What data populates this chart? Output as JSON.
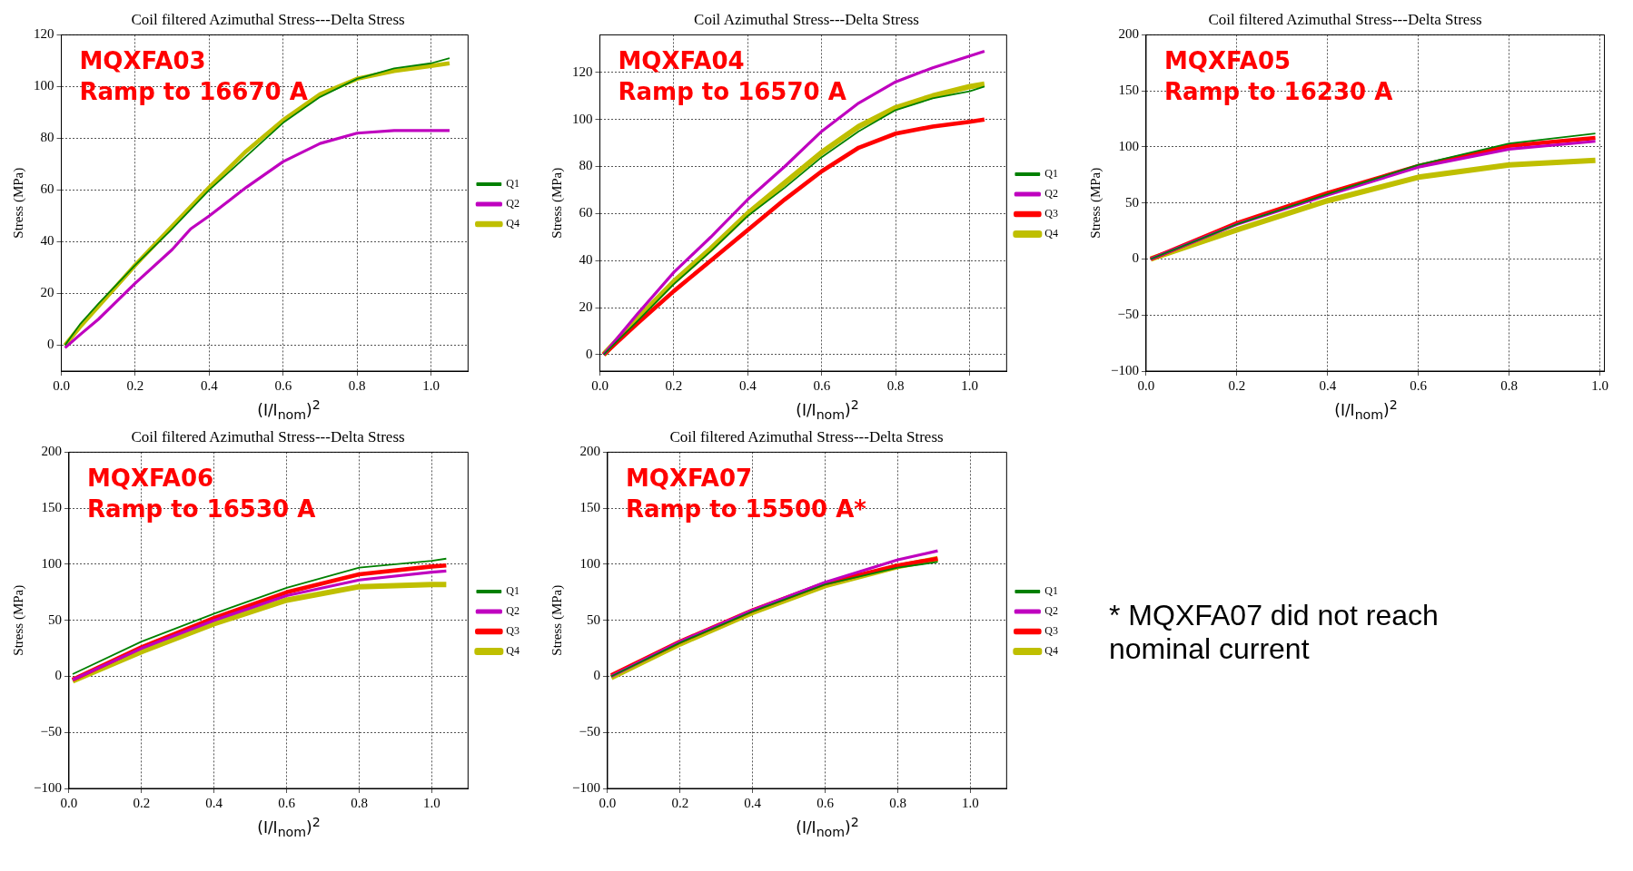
{
  "chart_data": [
    {
      "type": "line",
      "title": "Coil filtered Azimuthal Stress---Delta Stress",
      "xlabel": "(I/I$_{nom}$)$^{2}$",
      "ylabel": "Stress (MPa)",
      "annotations": [
        "MQXFA03",
        "Ramp to 16670 A"
      ],
      "xlim": [
        0,
        1.1
      ],
      "ylim": [
        -10,
        120
      ],
      "xticks": [
        {
          "value": 0,
          "label": "0.0"
        },
        {
          "value": 0.2,
          "label": "0.2"
        },
        {
          "value": 0.4,
          "label": "0.4"
        },
        {
          "value": 0.6,
          "label": "0.6"
        },
        {
          "value": 0.8,
          "label": "0.8"
        },
        {
          "value": 1,
          "label": "1.0"
        }
      ],
      "yticks": [
        0,
        20,
        40,
        60,
        80,
        100,
        120
      ],
      "grid": true,
      "legend": "right",
      "line_style": "solid",
      "series": [
        {
          "name": "Q1",
          "color": "#008000",
          "x": [
            0.01,
            0.05,
            0.1,
            0.2,
            0.3,
            0.4,
            0.5,
            0.6,
            0.7,
            0.8,
            0.9,
            1.0,
            1.05
          ],
          "values": [
            0,
            8,
            16,
            31,
            45,
            60,
            73,
            86,
            96,
            103,
            107,
            109,
            111
          ]
        },
        {
          "name": "Q2",
          "color": "#bf00bf",
          "x": [
            0.01,
            0.05,
            0.1,
            0.2,
            0.3,
            0.35,
            0.4,
            0.5,
            0.6,
            0.7,
            0.8,
            0.9,
            1.0,
            1.05
          ],
          "values": [
            -1,
            4,
            10,
            24,
            37,
            45,
            50,
            61,
            71,
            78,
            82,
            83,
            83,
            83
          ]
        },
        {
          "name": "Q4",
          "color": "#bfbf00",
          "x": [
            0.01,
            0.05,
            0.1,
            0.2,
            0.3,
            0.4,
            0.5,
            0.6,
            0.7,
            0.8,
            0.9,
            1.0,
            1.05
          ],
          "values": [
            0,
            7,
            15,
            31,
            46,
            61,
            75,
            87,
            97,
            103,
            106,
            108,
            109
          ]
        }
      ]
    },
    {
      "type": "line",
      "title": "Coil Azimuthal Stress---Delta Stress",
      "xlabel": "(I/I$_{nom}$)$^{2}$",
      "ylabel": "Stress (MPa)",
      "annotations": [
        "MQXFA04",
        "Ramp to 16570 A"
      ],
      "xlim": [
        0,
        1.1
      ],
      "ylim": [
        -7,
        136
      ],
      "xticks": [
        {
          "value": 0,
          "label": "0.0"
        },
        {
          "value": 0.2,
          "label": "0.2"
        },
        {
          "value": 0.4,
          "label": "0.4"
        },
        {
          "value": 0.6,
          "label": "0.6"
        },
        {
          "value": 0.8,
          "label": "0.8"
        },
        {
          "value": 1,
          "label": "1.0"
        }
      ],
      "yticks": [
        0,
        20,
        40,
        60,
        80,
        100,
        120
      ],
      "grid": true,
      "legend": "right",
      "line_style": "solid",
      "series": [
        {
          "name": "Q1",
          "color": "#008000",
          "x": [
            0.01,
            0.1,
            0.2,
            0.3,
            0.4,
            0.5,
            0.6,
            0.7,
            0.8,
            0.9,
            1.0,
            1.04
          ],
          "values": [
            0,
            14,
            30,
            44,
            59,
            71,
            84,
            95,
            104,
            109,
            112,
            114
          ]
        },
        {
          "name": "Q2",
          "color": "#bf00bf",
          "x": [
            0.01,
            0.1,
            0.2,
            0.3,
            0.4,
            0.5,
            0.6,
            0.7,
            0.8,
            0.9,
            1.0,
            1.04
          ],
          "values": [
            0,
            17,
            35,
            50,
            66,
            80,
            95,
            107,
            116,
            122,
            127,
            129
          ]
        },
        {
          "name": "Q3",
          "color": "#ff0000",
          "x": [
            0.01,
            0.1,
            0.2,
            0.3,
            0.4,
            0.5,
            0.6,
            0.7,
            0.8,
            0.9,
            1.0,
            1.04
          ],
          "values": [
            0,
            13,
            27,
            40,
            53,
            66,
            78,
            88,
            94,
            97,
            99,
            100
          ]
        },
        {
          "name": "Q4",
          "color": "#bfbf00",
          "x": [
            0.01,
            0.1,
            0.2,
            0.3,
            0.4,
            0.5,
            0.6,
            0.7,
            0.8,
            0.9,
            1.0,
            1.04
          ],
          "values": [
            0,
            15,
            31,
            45,
            60,
            73,
            86,
            97,
            105,
            110,
            114,
            115
          ]
        }
      ]
    },
    {
      "type": "line",
      "title": "Coil filtered Azimuthal Stress---Delta Stress",
      "xlabel": "(I/I$_{nom}$)$^{2}$",
      "ylabel": "Stress (MPa)",
      "annotations": [
        "MQXFA05",
        "Ramp to 16230 A"
      ],
      "xlim": [
        0,
        1.01
      ],
      "ylim": [
        -100,
        200
      ],
      "xticks": [
        {
          "value": 0,
          "label": "0.0"
        },
        {
          "value": 0.2,
          "label": "0.2"
        },
        {
          "value": 0.4,
          "label": "0.4"
        },
        {
          "value": 0.6,
          "label": "0.6"
        },
        {
          "value": 0.8,
          "label": "0.8"
        },
        {
          "value": 1,
          "label": "1.0"
        }
      ],
      "yticks": [
        -100,
        -50,
        0,
        50,
        100,
        150,
        200
      ],
      "grid": true,
      "line_style": "solid",
      "series": [
        {
          "color": "#008000",
          "x": [
            0.01,
            0.2,
            0.4,
            0.6,
            0.8,
            0.99
          ],
          "values": [
            0,
            31,
            58,
            84,
            103,
            112
          ]
        },
        {
          "color": "#bf00bf",
          "x": [
            0.01,
            0.2,
            0.4,
            0.6,
            0.8,
            0.99
          ],
          "values": [
            0,
            31,
            57,
            82,
            98,
            105
          ]
        },
        {
          "color": "#ff0000",
          "x": [
            0.01,
            0.2,
            0.4,
            0.6,
            0.8,
            0.99
          ],
          "values": [
            0,
            32,
            59,
            83,
            101,
            108
          ]
        },
        {
          "color": "#bfbf00",
          "x": [
            0.01,
            0.2,
            0.4,
            0.6,
            0.8,
            0.99
          ],
          "values": [
            0,
            26,
            52,
            73,
            84,
            88
          ]
        }
      ]
    },
    {
      "type": "line",
      "title": "Coil filtered Azimuthal Stress---Delta Stress",
      "xlabel": "(I/I$_{nom}$)$^{2}$",
      "ylabel": "Stress (MPa)",
      "annotations": [
        "MQXFA06",
        "Ramp to 16530 A"
      ],
      "xlim": [
        0,
        1.1
      ],
      "ylim": [
        -100,
        200
      ],
      "xticks": [
        {
          "value": 0,
          "label": "0.0"
        },
        {
          "value": 0.2,
          "label": "0.2"
        },
        {
          "value": 0.4,
          "label": "0.4"
        },
        {
          "value": 0.6,
          "label": "0.6"
        },
        {
          "value": 0.8,
          "label": "0.8"
        },
        {
          "value": 1,
          "label": "1.0"
        }
      ],
      "yticks": [
        -100,
        -50,
        0,
        50,
        100,
        150,
        200
      ],
      "grid": true,
      "legend": "right",
      "line_style": "solid",
      "series": [
        {
          "name": "Q1",
          "color": "#008000",
          "x": [
            0.01,
            0.2,
            0.4,
            0.6,
            0.8,
            1.0,
            1.04
          ],
          "values": [
            2,
            31,
            56,
            79,
            97,
            103,
            105
          ]
        },
        {
          "name": "Q2",
          "color": "#bf00bf",
          "x": [
            0.01,
            0.2,
            0.4,
            0.6,
            0.8,
            1.0,
            1.04
          ],
          "values": [
            -3,
            25,
            50,
            72,
            86,
            93,
            94
          ]
        },
        {
          "name": "Q3",
          "color": "#ff0000",
          "x": [
            0.01,
            0.2,
            0.4,
            0.6,
            0.8,
            1.0,
            1.04
          ],
          "values": [
            -3,
            26,
            52,
            75,
            91,
            98,
            99
          ]
        },
        {
          "name": "Q4",
          "color": "#bfbf00",
          "x": [
            0.01,
            0.2,
            0.4,
            0.6,
            0.8,
            1.0,
            1.04
          ],
          "values": [
            -4,
            22,
            47,
            68,
            80,
            82,
            82
          ]
        }
      ]
    },
    {
      "type": "line",
      "title": "Coil filtered Azimuthal Stress---Delta Stress",
      "xlabel": "(I/I$_{nom}$)$^{2}$",
      "ylabel": "Stress (MPa)",
      "annotations": [
        "MQXFA07",
        "Ramp to 15500 A*",
        "* MQXFA07 did not reach nominal current"
      ],
      "xlim": [
        0,
        1.1
      ],
      "ylim": [
        -100,
        200
      ],
      "xticks": [
        {
          "value": 0,
          "label": "0.0"
        },
        {
          "value": 0.2,
          "label": "0.2"
        },
        {
          "value": 0.4,
          "label": "0.4"
        },
        {
          "value": 0.6,
          "label": "0.6"
        },
        {
          "value": 0.8,
          "label": "0.8"
        },
        {
          "value": 1,
          "label": "1.0"
        }
      ],
      "yticks": [
        -100,
        -50,
        0,
        50,
        100,
        150,
        200
      ],
      "grid": true,
      "legend": "right",
      "line_style": "solid",
      "series": [
        {
          "name": "Q1",
          "color": "#008000",
          "x": [
            0.01,
            0.2,
            0.4,
            0.6,
            0.8,
            0.91
          ],
          "values": [
            0,
            30,
            58,
            82,
            97,
            102
          ]
        },
        {
          "name": "Q2",
          "color": "#bf00bf",
          "x": [
            0.01,
            0.2,
            0.4,
            0.6,
            0.8,
            0.91
          ],
          "values": [
            0,
            31,
            59,
            84,
            104,
            112
          ]
        },
        {
          "name": "Q3",
          "color": "#ff0000",
          "x": [
            0.01,
            0.2,
            0.4,
            0.6,
            0.8,
            0.91
          ],
          "values": [
            1,
            31,
            59,
            83,
            99,
            105
          ]
        },
        {
          "name": "Q4",
          "color": "#bfbf00",
          "x": [
            0.01,
            0.2,
            0.4,
            0.6,
            0.8,
            0.91
          ],
          "values": [
            -1,
            29,
            57,
            81,
            98,
            105
          ]
        }
      ]
    }
  ]
}
